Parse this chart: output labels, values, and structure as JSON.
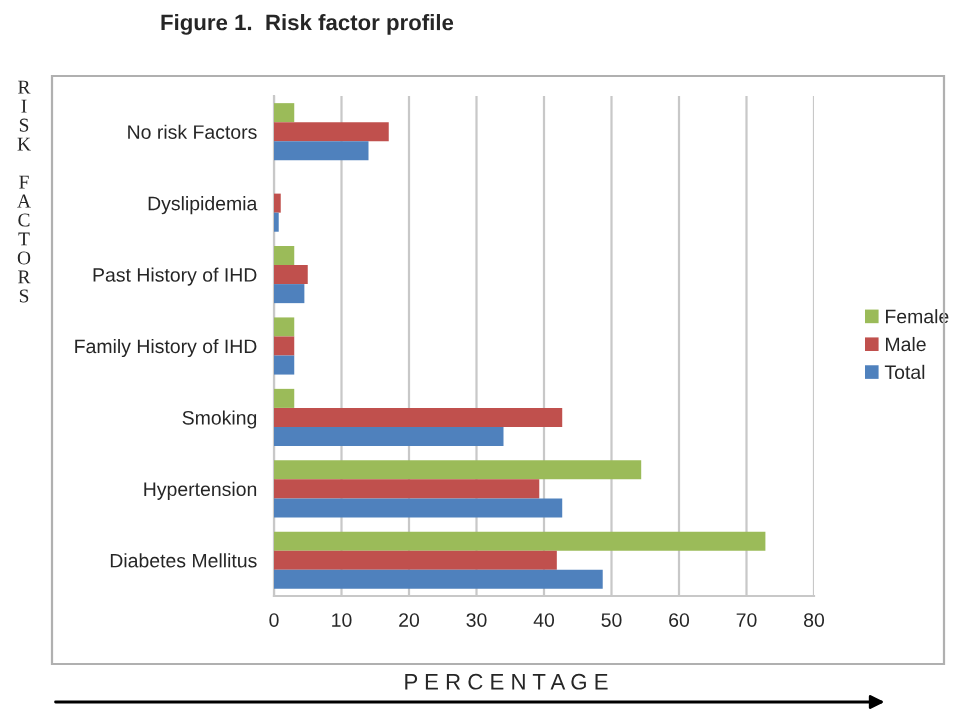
{
  "chart_data": {
    "type": "bar",
    "orientation": "horizontal",
    "title": "Figure 1.  Risk factor profile",
    "xlabel": "P E R C E N T A G E",
    "ylabel": "RISK FACTORS",
    "categories": [
      "No risk Factors",
      "Dyslipidemia",
      "Past History of IHD",
      "Family History of IHD",
      "Smoking",
      "Hypertension",
      "Diabetes Mellitus"
    ],
    "series": [
      {
        "name": "Female",
        "color": "#9bbb59",
        "values": [
          3,
          0,
          3,
          3,
          3,
          54.4,
          72.8
        ]
      },
      {
        "name": "Male",
        "color": "#c0504d",
        "values": [
          17,
          1,
          5,
          3,
          42.7,
          39.3,
          41.9
        ]
      },
      {
        "name": "Total",
        "color": "#4f81bd",
        "values": [
          14,
          0.7,
          4.5,
          3,
          34,
          42.7,
          48.7
        ]
      }
    ],
    "xlim": [
      0,
      80
    ],
    "xticks": [
      0,
      10,
      20,
      30,
      40,
      50,
      60,
      70,
      80
    ],
    "grid": "x",
    "legend": "right"
  }
}
